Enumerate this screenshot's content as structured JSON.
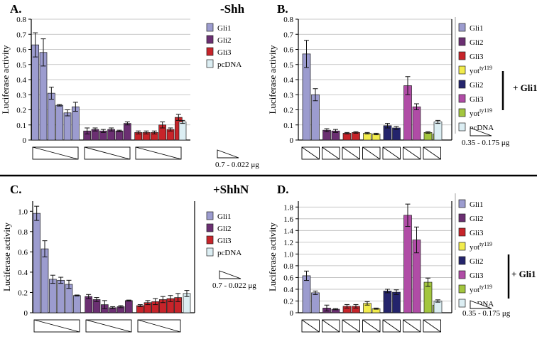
{
  "figure": {
    "colors": {
      "Gli1": "#9c9ccf",
      "Gli2": "#6b2f72",
      "Gli3": "#c7242a",
      "pcDNA": "#dceef3",
      "yot": "#f2ec4c",
      "Gli2b": "#24246c",
      "Gli3b": "#b04ca6",
      "yotb": "#a3c63e"
    }
  },
  "chart_data": [
    {
      "type": "bar",
      "panel_label": "A.",
      "condition": "-Shh",
      "ylabel": "Luciferase activity",
      "ylim": [
        0,
        0.8
      ],
      "yticks": [
        "0",
        "0.1",
        "0.2",
        "0.3",
        "0.4",
        "0.5",
        "0.6",
        "0.7",
        "0.8"
      ],
      "grid": true,
      "legend": [
        {
          "label": "Gli1",
          "color_key": "Gli1"
        },
        {
          "label": "Gli2",
          "color_key": "Gli2"
        },
        {
          "label": "Gli3",
          "color_key": "Gli3"
        },
        {
          "label": "pcDNA",
          "color_key": "pcDNA"
        }
      ],
      "dose_label": "0.7 - 0.022 μg",
      "bars": [
        {
          "series": "Gli1",
          "value": 0.63,
          "err": 0.08
        },
        {
          "series": "Gli1",
          "value": 0.58,
          "err": 0.09
        },
        {
          "series": "Gli1",
          "value": 0.31,
          "err": 0.04
        },
        {
          "series": "Gli1",
          "value": 0.23,
          "err": 0.005
        },
        {
          "series": "Gli1",
          "value": 0.18,
          "err": 0.02
        },
        {
          "series": "Gli1",
          "value": 0.22,
          "err": 0.03
        },
        {
          "series": "Gli2",
          "value": 0.06,
          "err": 0.02
        },
        {
          "series": "Gli2",
          "value": 0.07,
          "err": 0.01
        },
        {
          "series": "Gli2",
          "value": 0.06,
          "err": 0.01
        },
        {
          "series": "Gli2",
          "value": 0.07,
          "err": 0.01
        },
        {
          "series": "Gli2",
          "value": 0.06,
          "err": 0.005
        },
        {
          "series": "Gli2",
          "value": 0.11,
          "err": 0.01
        },
        {
          "series": "Gli3",
          "value": 0.05,
          "err": 0.01
        },
        {
          "series": "Gli3",
          "value": 0.05,
          "err": 0.01
        },
        {
          "series": "Gli3",
          "value": 0.05,
          "err": 0.01
        },
        {
          "series": "Gli3",
          "value": 0.1,
          "err": 0.02
        },
        {
          "series": "Gli3",
          "value": 0.07,
          "err": 0.01
        },
        {
          "series": "Gli3",
          "value": 0.15,
          "err": 0.02
        },
        {
          "series": "pcDNA",
          "value": 0.12,
          "err": 0.01
        }
      ]
    },
    {
      "type": "bar",
      "panel_label": "B.",
      "ylabel": "Luciferase activity",
      "ylim": [
        0,
        0.8
      ],
      "yticks": [
        "0",
        "0.1",
        "0.2",
        "0.3",
        "0.4",
        "0.5",
        "0.6",
        "0.7",
        "0.8"
      ],
      "grid": true,
      "legend": [
        {
          "label": "Gli1",
          "sup": "",
          "color_key": "Gli1"
        },
        {
          "label": "Gli2",
          "sup": "",
          "color_key": "Gli2"
        },
        {
          "label": "Gli3",
          "sup": "",
          "color_key": "Gli3"
        },
        {
          "label": "yot",
          "sup": "ty119",
          "color_key": "yot"
        },
        {
          "label": "Gli2",
          "sup": "",
          "color_key": "Gli2b"
        },
        {
          "label": "Gli3",
          "sup": "",
          "color_key": "Gli3b"
        },
        {
          "label": "yot",
          "sup": "ty119",
          "color_key": "yotb"
        },
        {
          "label": "pcDNA",
          "sup": "",
          "color_key": "pcDNA"
        }
      ],
      "bracket_label": "+ Gli1",
      "dose_label": "0.35 - 0.175 μg",
      "bars": [
        {
          "series": "Gli1",
          "value": 0.57,
          "err": 0.09
        },
        {
          "series": "Gli1",
          "value": 0.3,
          "err": 0.04
        },
        {
          "series": "Gli2",
          "value": 0.065,
          "err": 0.01
        },
        {
          "series": "Gli2",
          "value": 0.06,
          "err": 0.01
        },
        {
          "series": "Gli3",
          "value": 0.045,
          "err": 0.005
        },
        {
          "series": "Gli3",
          "value": 0.05,
          "err": 0.005
        },
        {
          "series": "yot",
          "value": 0.045,
          "err": 0.005
        },
        {
          "series": "yot",
          "value": 0.04,
          "err": 0.005
        },
        {
          "series": "Gli2b",
          "value": 0.095,
          "err": 0.015
        },
        {
          "series": "Gli2b",
          "value": 0.08,
          "err": 0.01
        },
        {
          "series": "Gli3b",
          "value": 0.36,
          "err": 0.06
        },
        {
          "series": "Gli3b",
          "value": 0.22,
          "err": 0.02
        },
        {
          "series": "yotb",
          "value": 0.05,
          "err": 0.005
        },
        {
          "series": "yotb",
          "value": 0.04,
          "err": 0.005
        },
        {
          "series": "pcDNA",
          "value": 0.12,
          "err": 0.01
        }
      ]
    },
    {
      "type": "bar",
      "panel_label": "C.",
      "condition": "+ShhN",
      "ylabel": "Luciferase activity",
      "ylim": [
        0,
        1.1
      ],
      "yticks": [
        "0",
        "0.2",
        "0.4",
        "0.6",
        "0.8",
        "1.0"
      ],
      "ytick_values": [
        0,
        0.2,
        0.4,
        0.6,
        0.8,
        1.0
      ],
      "grid": false,
      "legend": [
        {
          "label": "Gli1",
          "color_key": "Gli1"
        },
        {
          "label": "Gli2",
          "color_key": "Gli2"
        },
        {
          "label": "Gli3",
          "color_key": "Gli3"
        },
        {
          "label": "pcDNA",
          "color_key": "pcDNA"
        }
      ],
      "dose_label": "0.7 - 0.022 μg",
      "bars": [
        {
          "series": "Gli1",
          "value": 0.98,
          "err": 0.07
        },
        {
          "series": "Gli1",
          "value": 0.63,
          "err": 0.08
        },
        {
          "series": "Gli1",
          "value": 0.33,
          "err": 0.04
        },
        {
          "series": "Gli1",
          "value": 0.32,
          "err": 0.03
        },
        {
          "series": "Gli1",
          "value": 0.28,
          "err": 0.04
        },
        {
          "series": "Gli1",
          "value": 0.17,
          "err": 0.005
        },
        {
          "series": "Gli2",
          "value": 0.16,
          "err": 0.02
        },
        {
          "series": "Gli2",
          "value": 0.13,
          "err": 0.02
        },
        {
          "series": "Gli2",
          "value": 0.08,
          "err": 0.04
        },
        {
          "series": "Gli2",
          "value": 0.05,
          "err": 0.01
        },
        {
          "series": "Gli2",
          "value": 0.06,
          "err": 0.01
        },
        {
          "series": "Gli2",
          "value": 0.12,
          "err": 0.005
        },
        {
          "series": "Gli3",
          "value": 0.07,
          "err": 0.01
        },
        {
          "series": "Gli3",
          "value": 0.1,
          "err": 0.02
        },
        {
          "series": "Gli3",
          "value": 0.11,
          "err": 0.03
        },
        {
          "series": "Gli3",
          "value": 0.13,
          "err": 0.03
        },
        {
          "series": "Gli3",
          "value": 0.14,
          "err": 0.03
        },
        {
          "series": "Gli3",
          "value": 0.15,
          "err": 0.04
        },
        {
          "series": "pcDNA",
          "value": 0.19,
          "err": 0.03
        }
      ]
    },
    {
      "type": "bar",
      "panel_label": "D.",
      "ylabel": "Luciferase activity",
      "ylim": [
        0,
        1.9
      ],
      "yticks": [
        "0",
        "0.2",
        "0.4",
        "0.6",
        "0.8",
        "1.0",
        "1.2",
        "1.4",
        "1.6",
        "1.8"
      ],
      "ytick_values": [
        0,
        0.2,
        0.4,
        0.6,
        0.8,
        1.0,
        1.2,
        1.4,
        1.6,
        1.8
      ],
      "grid": true,
      "legend": [
        {
          "label": "Gli1",
          "sup": "",
          "color_key": "Gli1"
        },
        {
          "label": "Gli2",
          "sup": "",
          "color_key": "Gli2"
        },
        {
          "label": "Gli3",
          "sup": "",
          "color_key": "Gli3"
        },
        {
          "label": "yot",
          "sup": "ty119",
          "color_key": "yot"
        },
        {
          "label": "Gli2",
          "sup": "",
          "color_key": "Gli2b"
        },
        {
          "label": "Gli3",
          "sup": "",
          "color_key": "Gli3b"
        },
        {
          "label": "yot",
          "sup": "ty119",
          "color_key": "yotb"
        },
        {
          "label": "pcDNA",
          "sup": "",
          "color_key": "pcDNA"
        }
      ],
      "bracket_label": "+ Gli1",
      "dose_label": "0.35 - 0.175 μg",
      "bars": [
        {
          "series": "Gli1",
          "value": 0.63,
          "err": 0.08
        },
        {
          "series": "Gli1",
          "value": 0.34,
          "err": 0.03
        },
        {
          "series": "Gli2",
          "value": 0.08,
          "err": 0.05
        },
        {
          "series": "Gli2",
          "value": 0.06,
          "err": 0.01
        },
        {
          "series": "Gli3",
          "value": 0.11,
          "err": 0.03
        },
        {
          "series": "Gli3",
          "value": 0.11,
          "err": 0.03
        },
        {
          "series": "yot",
          "value": 0.16,
          "err": 0.03
        },
        {
          "series": "yot",
          "value": 0.07,
          "err": 0.01
        },
        {
          "series": "Gli2b",
          "value": 0.37,
          "err": 0.03
        },
        {
          "series": "Gli2b",
          "value": 0.35,
          "err": 0.04
        },
        {
          "series": "Gli3b",
          "value": 1.66,
          "err": 0.19
        },
        {
          "series": "Gli3b",
          "value": 1.24,
          "err": 0.22
        },
        {
          "series": "yotb",
          "value": 0.52,
          "err": 0.07
        },
        {
          "series": "yotb",
          "value": 0.13,
          "err": 0.02
        },
        {
          "series": "pcDNA",
          "value": 0.2,
          "err": 0.02
        }
      ]
    }
  ]
}
